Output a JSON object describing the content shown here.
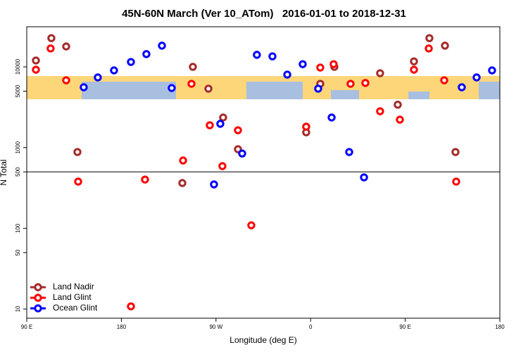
{
  "chart_data": {
    "type": "scatter",
    "title": "45N-60N March (Ver 10_ATom)   2016-01-01 to 2018-12-31",
    "x_label": "Longitude (deg E)",
    "y_label": "N Total",
    "xlim": [
      90,
      540
    ],
    "ylim": [
      7.7,
      31400
    ],
    "y_log": true,
    "xticks": [
      {
        "value": 90,
        "label": "90 E"
      },
      {
        "value": 180,
        "label": "180"
      },
      {
        "value": 270,
        "label": "90 W"
      },
      {
        "value": 360,
        "label": "0"
      },
      {
        "value": 450,
        "label": "90 E"
      },
      {
        "value": 540,
        "label": "180"
      }
    ],
    "yticks": [
      10,
      50,
      100,
      500,
      1000,
      5000,
      10000
    ],
    "reference_line": 500,
    "legend": "bottom-left",
    "series": [
      {
        "name": "Land Nadir",
        "color": "#a52a2a",
        "x": [
          98.7,
          113.4,
          127.5,
          138.2,
          238.0,
          248.0,
          262.8,
          276.8,
          290.9,
          355.8,
          369.2,
          382.6,
          426.1,
          442.9,
          458.3,
          473.0,
          487.8,
          497.8
        ],
        "values": [
          12000,
          22700,
          17900,
          881,
          364,
          10000,
          5370,
          2360,
          955,
          1545,
          6170,
          10000,
          8340,
          3400,
          11700,
          22700,
          18300,
          881
        ]
      },
      {
        "name": "Land Glint",
        "color": "#ff0000",
        "x": [
          98.7,
          112.7,
          127.5,
          138.9,
          189.1,
          202.5,
          238.7,
          246.7,
          264.1,
          276.1,
          290.9,
          303.6,
          355.8,
          369.2,
          381.9,
          398.0,
          412.1,
          426.1,
          444.9,
          458.3,
          472.4,
          487.1,
          498.5
        ],
        "values": [
          9220,
          16900,
          6820,
          379,
          10.8,
          402,
          692,
          6170,
          1890,
          589,
          1640,
          109,
          1815,
          9800,
          10800,
          6170,
          6320,
          2820,
          2220,
          9220,
          16900,
          6820,
          379
        ]
      },
      {
        "name": "Ocean Glint",
        "color": "#0000ff",
        "x": [
          144.2,
          157.6,
          173.0,
          189.1,
          203.8,
          218.6,
          227.9,
          268.1,
          274.1,
          294.9,
          308.9,
          323.7,
          337.8,
          352.5,
          367.2,
          380.0,
          396.7,
          410.8,
          503.8,
          517.9,
          532.6
        ],
        "values": [
          5590,
          7400,
          9040,
          11500,
          14400,
          18300,
          5470,
          350,
          1970,
          845,
          14100,
          13500,
          8020,
          10800,
          5370,
          2360,
          881,
          428,
          5590,
          7400,
          9040
        ]
      }
    ]
  }
}
